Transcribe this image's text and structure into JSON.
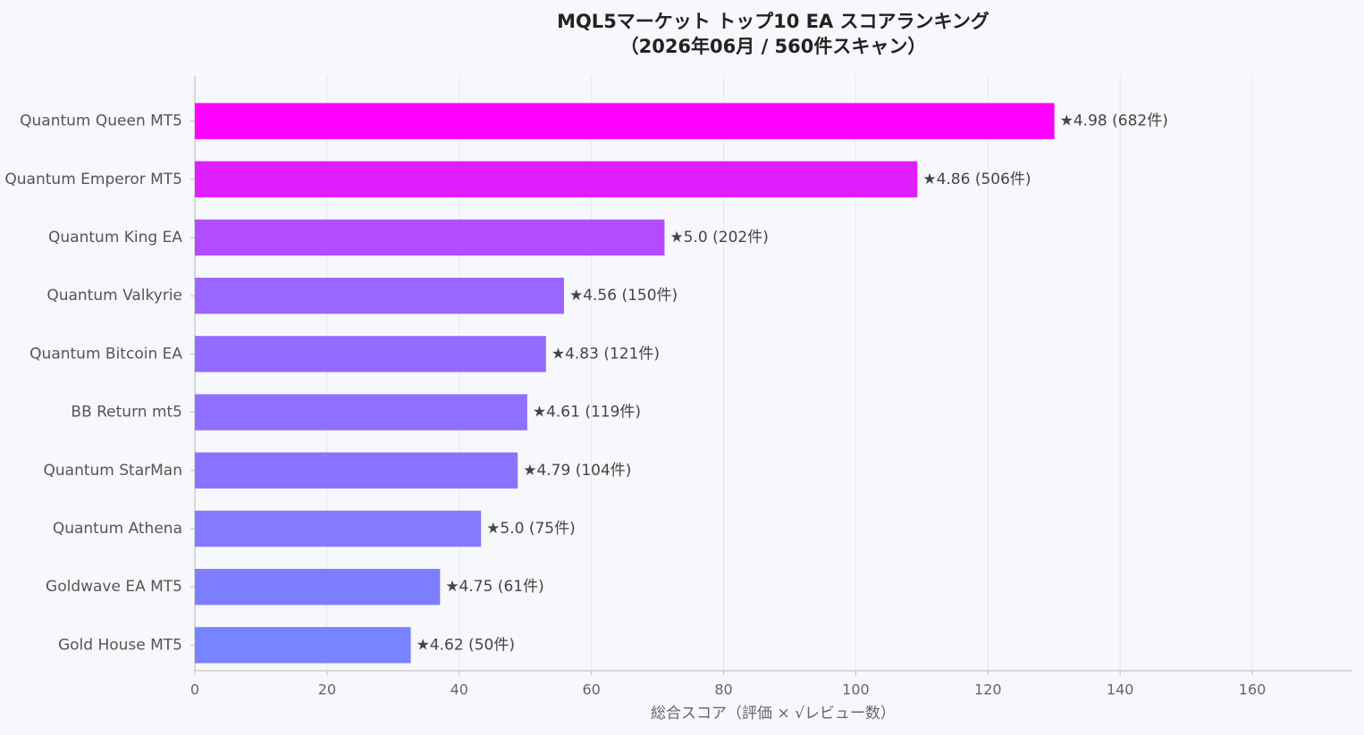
{
  "chart_data": {
    "type": "bar",
    "orientation": "horizontal",
    "title": [
      "MQL5マーケット トップ10 EA スコアランキング",
      "（2026年06月 / 560件スキャン）"
    ],
    "xlabel": "総合スコア（評価 × √レビュー数）",
    "categories": [
      "Quantum Queen MT5",
      "Quantum Emperor MT5",
      "Quantum King EA",
      "Quantum Valkyrie",
      "Quantum Bitcoin EA",
      "BB Return mt5",
      "Quantum StarMan",
      "Quantum Athena",
      "Goldwave EA MT5",
      "Gold House MT5"
    ],
    "values": [
      130.05,
      109.32,
      71.06,
      55.85,
      53.13,
      50.29,
      48.85,
      43.3,
      37.1,
      32.67
    ],
    "bar_labels": [
      "★4.98 (682件)",
      "★4.86 (506件)",
      "★5.0 (202件)",
      "★4.56 (150件)",
      "★4.83 (121件)",
      "★4.61 (119件)",
      "★4.79 (104件)",
      "★5.0 (75件)",
      "★4.75 (61件)",
      "★4.62 (50件)"
    ],
    "colors": [
      "#ff00ff",
      "#e01dff",
      "#b24cff",
      "#9966ff",
      "#946bff",
      "#8f6fff",
      "#8b73ff",
      "#857aff",
      "#7d7eff",
      "#7884ff"
    ],
    "xlim": [
      0,
      175
    ],
    "xticks": [
      0,
      20,
      40,
      60,
      80,
      100,
      120,
      140,
      160
    ],
    "grid": true
  }
}
